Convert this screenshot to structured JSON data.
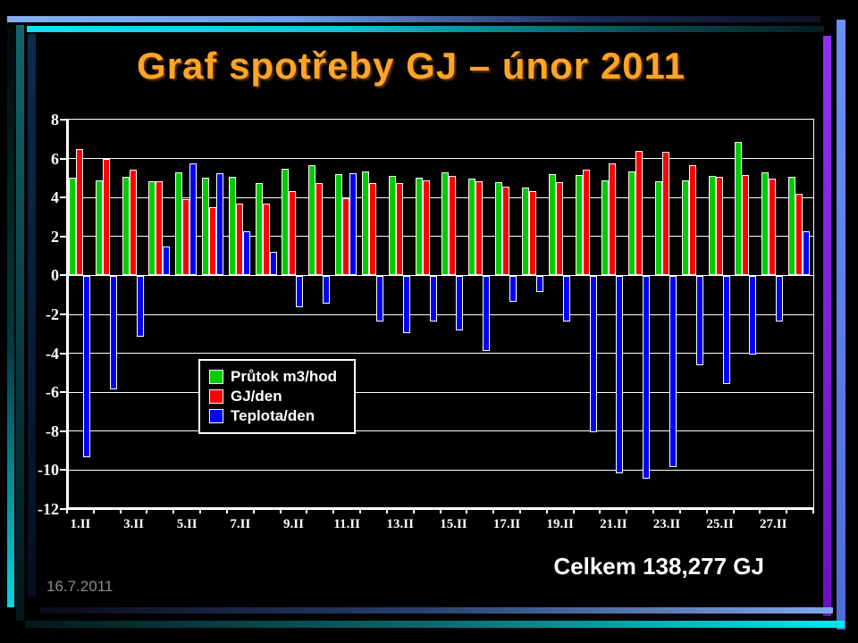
{
  "slide": {
    "title": "Graf spotřeby GJ – únor 2011",
    "title_color": "#FFA426",
    "total_label": "Celkem 138,277 GJ",
    "date_label": "16.7.2011",
    "background": "#000000"
  },
  "chart_data": {
    "type": "bar",
    "title": "Graf spotřeby GJ – únor 2011",
    "categories": [
      "1.II",
      "2.II",
      "3.II",
      "4.II",
      "5.II",
      "6.II",
      "7.II",
      "8.II",
      "9.II",
      "10.II",
      "11.II",
      "12.II",
      "13.II",
      "14.II",
      "15.II",
      "16.II",
      "17.II",
      "18.II",
      "19.II",
      "20.II",
      "21.II",
      "22.II",
      "23.II",
      "24.II",
      "25.II",
      "26.II",
      "27.II",
      "28.II"
    ],
    "series": [
      {
        "name": "Průtok m3/hod",
        "color": "#00CC00",
        "values": [
          5.0,
          4.9,
          5.05,
          4.85,
          5.3,
          5.0,
          5.05,
          4.75,
          5.5,
          5.65,
          5.2,
          5.35,
          5.1,
          5.0,
          5.3,
          4.95,
          4.8,
          4.5,
          5.2,
          5.15,
          4.9,
          5.35,
          4.85,
          4.9,
          5.1,
          6.85,
          5.3,
          5.05
        ]
      },
      {
        "name": "GJ/den",
        "color": "#FF0000",
        "values": [
          6.5,
          6.0,
          5.45,
          4.85,
          3.9,
          3.5,
          3.7,
          3.7,
          4.35,
          4.75,
          3.95,
          4.75,
          4.75,
          4.9,
          5.1,
          4.85,
          4.55,
          4.35,
          4.8,
          5.45,
          5.75,
          6.4,
          6.35,
          5.65,
          5.05,
          5.15,
          4.95,
          4.2
        ]
      },
      {
        "name": "Teplota/den",
        "color": "#0000FF",
        "values": [
          -9.3,
          -5.8,
          -3.1,
          1.5,
          5.75,
          5.25,
          2.25,
          1.2,
          -1.6,
          -1.4,
          5.25,
          -2.3,
          -2.9,
          -2.3,
          -2.8,
          -3.85,
          -1.3,
          -0.8,
          -2.3,
          -8.0,
          -10.1,
          -10.4,
          -9.8,
          -4.55,
          -5.55,
          -4.0,
          -2.3,
          2.25
        ]
      }
    ],
    "ylim": [
      -12,
      8
    ],
    "ytick_labels": [
      "8",
      "6",
      "4",
      "2",
      "0",
      "-2",
      "-4",
      "-6",
      "-8",
      "-10",
      "-12"
    ],
    "xtick_labels": [
      "1.II",
      "3.II",
      "5.II",
      "7.II",
      "9.II",
      "11.II",
      "13.II",
      "15.II",
      "17.II",
      "19.II",
      "21.II",
      "23.II",
      "25.II",
      "27.II"
    ],
    "grid": true,
    "legend_position": "inside-left",
    "axis_color": "#FFFFFF",
    "plot_background": "#000000"
  }
}
